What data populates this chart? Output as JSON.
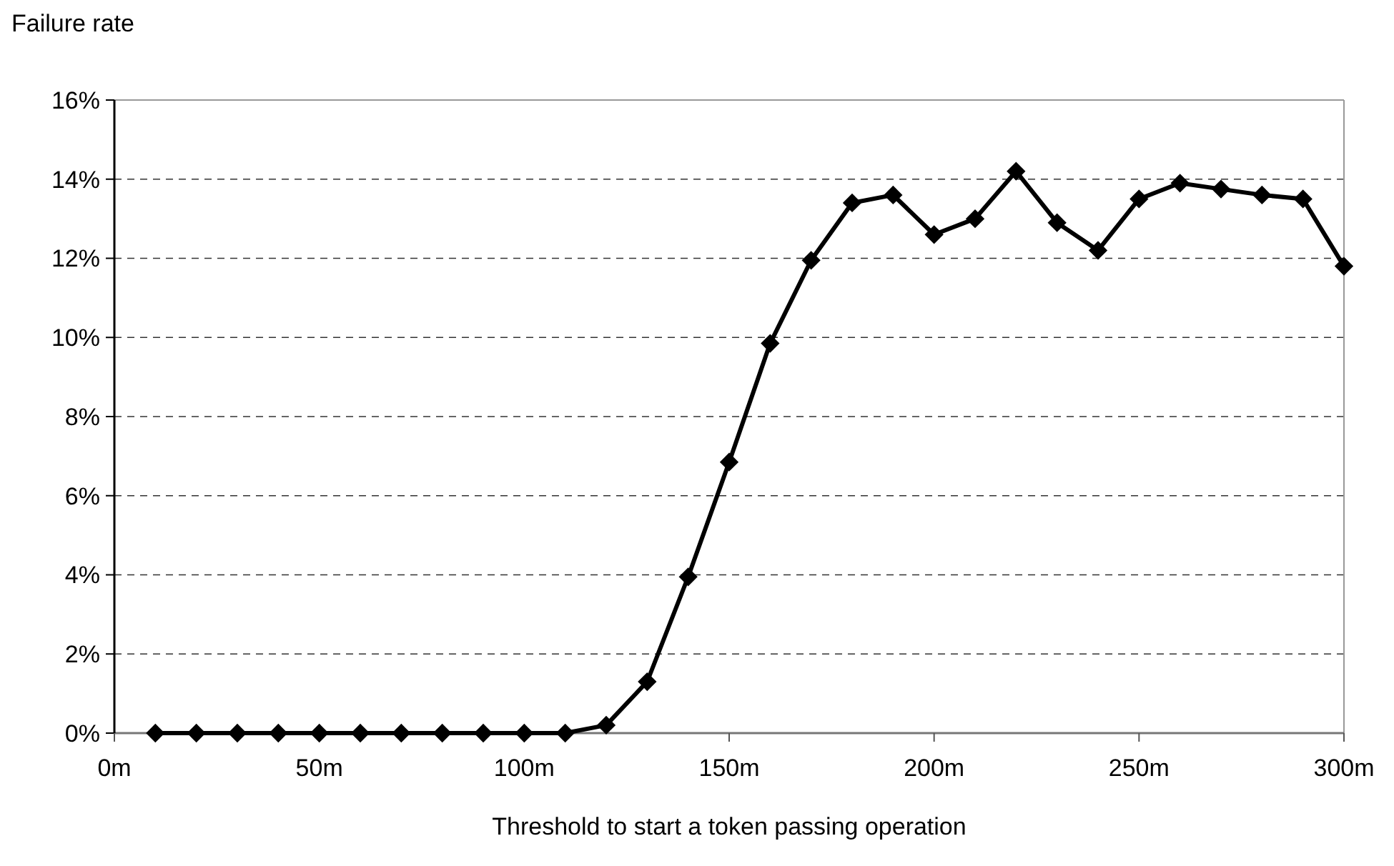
{
  "chart_data": {
    "type": "line",
    "ylabel": "Failure rate",
    "xlabel": "Threshold to start a token passing operation",
    "x": [
      10,
      20,
      30,
      40,
      50,
      60,
      70,
      80,
      90,
      100,
      110,
      120,
      130,
      140,
      150,
      160,
      170,
      180,
      190,
      200,
      210,
      220,
      230,
      240,
      250,
      260,
      270,
      280,
      290,
      300
    ],
    "series": [
      {
        "color": "#000000",
        "values": [
          0,
          0,
          0,
          0,
          0,
          0,
          0,
          0,
          0,
          0,
          0,
          0.2,
          1.3,
          3.95,
          6.85,
          9.85,
          11.95,
          13.4,
          13.6,
          12.6,
          13.0,
          14.2,
          12.9,
          12.2,
          13.5,
          13.9,
          13.75,
          13.6,
          13.5,
          11.8
        ]
      }
    ],
    "xlim": [
      0,
      300
    ],
    "xticks": [
      {
        "value": 0,
        "label": "0m"
      },
      {
        "value": 50,
        "label": "50m"
      },
      {
        "value": 100,
        "label": "100m"
      },
      {
        "value": 150,
        "label": "150m"
      },
      {
        "value": 200,
        "label": "200m"
      },
      {
        "value": 250,
        "label": "250m"
      },
      {
        "value": 300,
        "label": "300m"
      }
    ],
    "ylim": [
      0,
      16
    ],
    "yticks": [
      {
        "value": 0,
        "label": "0%"
      },
      {
        "value": 2,
        "label": "2%"
      },
      {
        "value": 4,
        "label": "4%"
      },
      {
        "value": 6,
        "label": "6%"
      },
      {
        "value": 8,
        "label": "8%"
      },
      {
        "value": 10,
        "label": "10%"
      },
      {
        "value": 12,
        "label": "12%"
      },
      {
        "value": 14,
        "label": "14%"
      },
      {
        "value": 16,
        "label": "16%"
      }
    ],
    "grid": "y",
    "marker": "diamond",
    "line_style": "solid"
  }
}
